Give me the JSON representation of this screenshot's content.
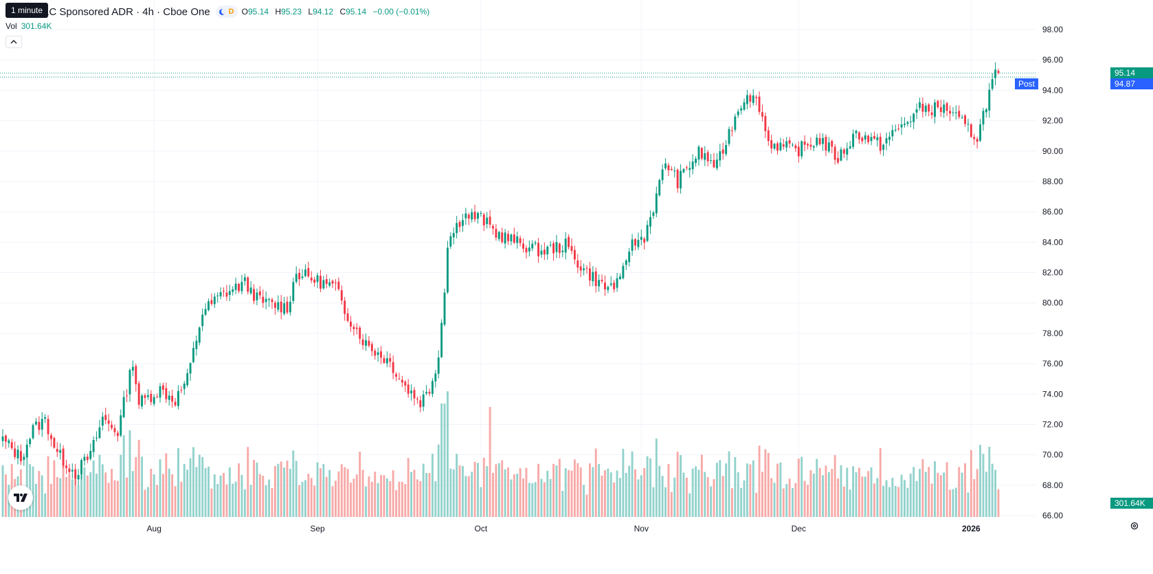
{
  "header": {
    "title": "eneca PLC Sponsored ADR · 4h · Cboe One",
    "tooltip": "1 minute",
    "ohlc": {
      "o_label": "O",
      "o": "95.14",
      "h_label": "H",
      "h": "95.23",
      "l_label": "L",
      "l": "94.12",
      "c_label": "C",
      "c": "95.14",
      "change": "−0.00 (−0.01%)"
    },
    "session_badge_letter": "D",
    "volume_label": "Vol",
    "volume_value": "301.64K",
    "collapse_icon": "chevron-up-icon"
  },
  "price_scale": {
    "last_price": "95.14",
    "post_label": "Post",
    "post_price": "94.87",
    "volume_tag": "301.64K",
    "colors": {
      "up": "#089981",
      "down": "#f23645",
      "post": "#2962ff",
      "up_vol": "#92d2cc",
      "down_vol": "#f7a9a7"
    }
  },
  "icons": {
    "logo": "tradingview-logo",
    "settings": "settings-gear-icon"
  },
  "chart_data": {
    "type": "candlestick",
    "y_axis": {
      "min": 66,
      "max": 98,
      "ticks": [
        "98.00",
        "96.00",
        "94.00",
        "92.00",
        "90.00",
        "88.00",
        "86.00",
        "84.00",
        "82.00",
        "80.00",
        "78.00",
        "76.00",
        "74.00",
        "72.00",
        "70.00",
        "68.00",
        "66.00"
      ]
    },
    "x_axis": {
      "labels": [
        "Aug",
        "Sep",
        "Oct",
        "Nov",
        "Dec",
        "2026"
      ]
    },
    "grid": true,
    "anchors": [
      {
        "i": 0,
        "v": 71.0
      },
      {
        "i": 6,
        "v": 69.8
      },
      {
        "i": 10,
        "v": 71.7
      },
      {
        "i": 14,
        "v": 72.3
      },
      {
        "i": 18,
        "v": 70.1
      },
      {
        "i": 24,
        "v": 68.8
      },
      {
        "i": 29,
        "v": 70.0
      },
      {
        "i": 33,
        "v": 72.4
      },
      {
        "i": 38,
        "v": 71.5
      },
      {
        "i": 43,
        "v": 76.2
      },
      {
        "i": 45,
        "v": 73.4
      },
      {
        "i": 52,
        "v": 74.3
      },
      {
        "i": 57,
        "v": 73.6
      },
      {
        "i": 61,
        "v": 75.0
      },
      {
        "i": 66,
        "v": 79.4
      },
      {
        "i": 72,
        "v": 80.5
      },
      {
        "i": 80,
        "v": 81.3
      },
      {
        "i": 85,
        "v": 80.1
      },
      {
        "i": 94,
        "v": 79.7
      },
      {
        "i": 97,
        "v": 82.0
      },
      {
        "i": 102,
        "v": 81.6
      },
      {
        "i": 110,
        "v": 81.0
      },
      {
        "i": 113,
        "v": 79.5
      },
      {
        "i": 120,
        "v": 77.3
      },
      {
        "i": 128,
        "v": 76.1
      },
      {
        "i": 133,
        "v": 74.5
      },
      {
        "i": 138,
        "v": 73.5
      },
      {
        "i": 141,
        "v": 74.3
      },
      {
        "i": 144,
        "v": 76.5
      },
      {
        "i": 146,
        "v": 81.0
      },
      {
        "i": 147,
        "v": 84.0
      },
      {
        "i": 152,
        "v": 85.8
      },
      {
        "i": 158,
        "v": 85.6
      },
      {
        "i": 163,
        "v": 84.6
      },
      {
        "i": 172,
        "v": 83.8
      },
      {
        "i": 178,
        "v": 83.4
      },
      {
        "i": 186,
        "v": 83.8
      },
      {
        "i": 191,
        "v": 82.4
      },
      {
        "i": 199,
        "v": 81.0
      },
      {
        "i": 204,
        "v": 81.3
      },
      {
        "i": 207,
        "v": 83.7
      },
      {
        "i": 212,
        "v": 84.4
      },
      {
        "i": 216,
        "v": 87.0
      },
      {
        "i": 219,
        "v": 89.3
      },
      {
        "i": 223,
        "v": 88.0
      },
      {
        "i": 230,
        "v": 89.9
      },
      {
        "i": 236,
        "v": 89.0
      },
      {
        "i": 242,
        "v": 92.3
      },
      {
        "i": 246,
        "v": 93.9
      },
      {
        "i": 250,
        "v": 93.0
      },
      {
        "i": 253,
        "v": 90.6
      },
      {
        "i": 262,
        "v": 90.0
      },
      {
        "i": 270,
        "v": 90.8
      },
      {
        "i": 276,
        "v": 89.5
      },
      {
        "i": 282,
        "v": 91.2
      },
      {
        "i": 290,
        "v": 90.4
      },
      {
        "i": 298,
        "v": 91.8
      },
      {
        "i": 303,
        "v": 92.8
      },
      {
        "i": 312,
        "v": 92.8
      },
      {
        "i": 318,
        "v": 91.6
      },
      {
        "i": 322,
        "v": 90.9
      },
      {
        "i": 325,
        "v": 93.2
      },
      {
        "i": 328,
        "v": 95.1
      },
      {
        "i": 329,
        "v": 95.14
      }
    ],
    "volume_axis_max": 380
  }
}
